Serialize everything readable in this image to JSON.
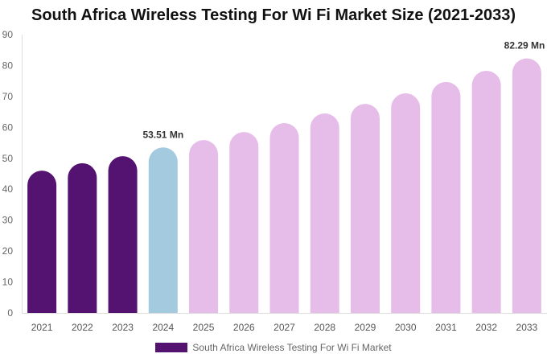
{
  "chart_data": {
    "type": "bar",
    "title": "South Africa Wireless Testing For Wi Fi Market Size (2021-2033)",
    "categories": [
      "2021",
      "2022",
      "2023",
      "2024",
      "2025",
      "2026",
      "2027",
      "2028",
      "2029",
      "2030",
      "2031",
      "2032",
      "2033"
    ],
    "series": [
      {
        "name": "South Africa Wireless Testing For Wi Fi Market",
        "values": [
          46.0,
          48.4,
          50.7,
          53.51,
          55.9,
          58.5,
          61.4,
          64.5,
          67.6,
          71.0,
          74.7,
          78.3,
          82.29
        ]
      }
    ],
    "data_labels": {
      "2024": "53.51 Mn",
      "2033": "82.29 Mn"
    },
    "ylim": [
      0,
      90
    ],
    "yticks": [
      0,
      10,
      20,
      30,
      40,
      50,
      60,
      70,
      80,
      90
    ],
    "grid": false,
    "legend_position": "bottom",
    "colors": {
      "historical": "#541271",
      "current": "#a3cade",
      "forecast": "#e6bce8"
    },
    "xlabel": "",
    "ylabel": ""
  }
}
